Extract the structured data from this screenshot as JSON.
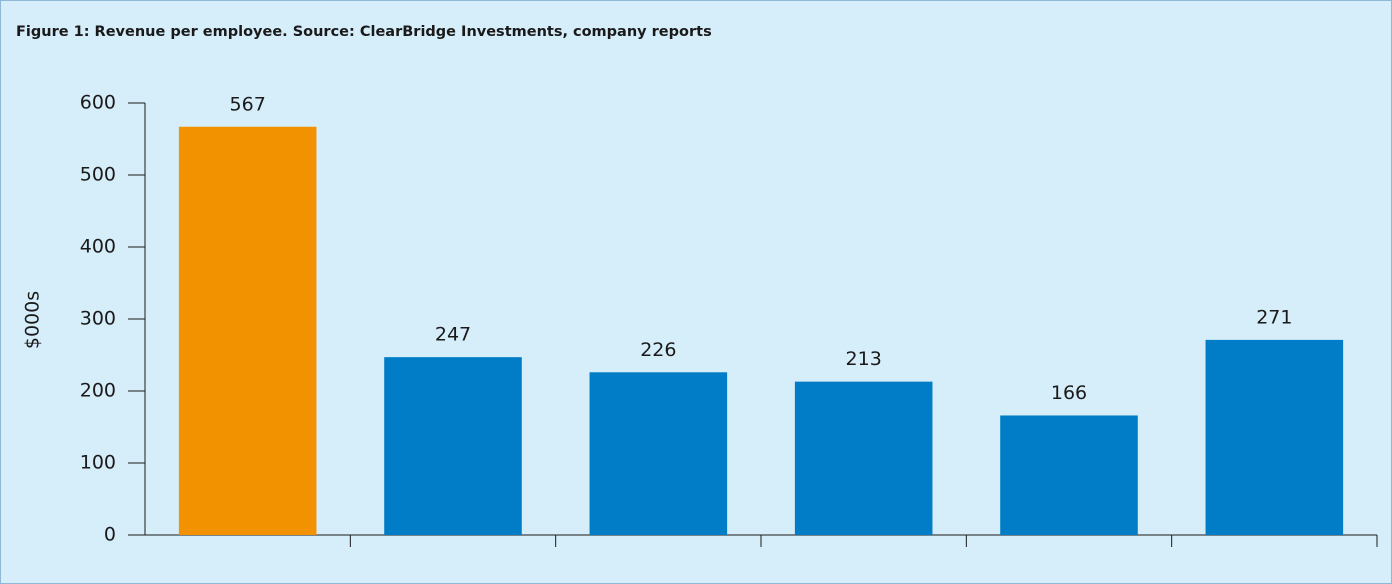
{
  "chart_data": {
    "type": "bar",
    "title": "Figure 1: Revenue per employee. Source: ClearBridge Investments, company reports",
    "ylabel": "$000s",
    "categories": [
      null,
      null,
      null,
      null,
      null,
      null
    ],
    "values": [
      567,
      247,
      226,
      213,
      166,
      271
    ],
    "colors": [
      "#f39200",
      "#007dc6",
      "#007dc6",
      "#007dc6",
      "#007dc6",
      "#007dc6"
    ],
    "ylim": [
      0,
      600
    ],
    "yticks": [
      0,
      100,
      200,
      300,
      400,
      500,
      600
    ],
    "grid": false,
    "data_labels": true
  }
}
